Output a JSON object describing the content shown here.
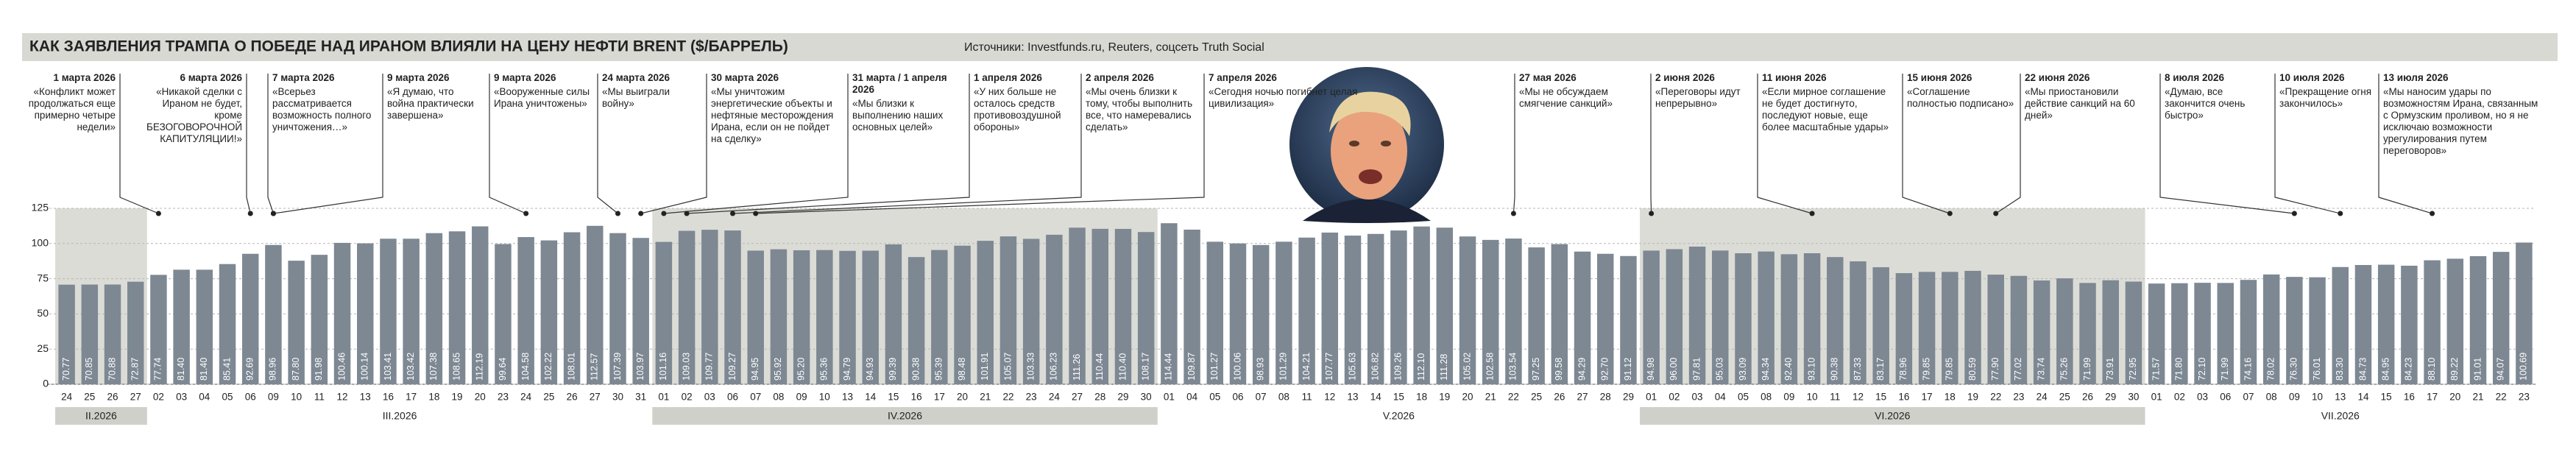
{
  "chart_data": {
    "type": "bar",
    "title": "КАК ЗАЯВЛЕНИЯ ТРАМПА О ПОБЕДЕ НАД ИРАНОМ ВЛИЯЛИ НА ЦЕНУ НЕФТИ BRENT ($/БАРРЕЛЬ)",
    "source": "Источники: Investfunds.ru, Reuters, соцсеть Truth Social",
    "color": "#7d8893",
    "ylim": [
      0,
      125
    ],
    "yticks": [
      0,
      25,
      50,
      75,
      100,
      125
    ],
    "grid": true,
    "months": [
      "II.2026",
      "III.2026",
      "IV.2026",
      "V.2026",
      "VI.2026",
      "VII.2026"
    ],
    "categories": [
      "24",
      "25",
      "26",
      "27",
      "02",
      "03",
      "04",
      "05",
      "06",
      "09",
      "10",
      "11",
      "12",
      "13",
      "16",
      "17",
      "18",
      "19",
      "20",
      "23",
      "24",
      "25",
      "26",
      "27",
      "30",
      "31",
      "01",
      "02",
      "03",
      "06",
      "07",
      "08",
      "09",
      "10",
      "13",
      "14",
      "15",
      "16",
      "17",
      "20",
      "21",
      "22",
      "23",
      "24",
      "27",
      "28",
      "29",
      "30",
      "01",
      "04",
      "05",
      "06",
      "07",
      "08",
      "11",
      "12",
      "13",
      "14",
      "15",
      "18",
      "19",
      "20",
      "21",
      "22",
      "25",
      "26",
      "27",
      "28",
      "29",
      "01",
      "02",
      "03",
      "04",
      "05",
      "08",
      "09",
      "10",
      "11",
      "12",
      "15",
      "16",
      "17",
      "18",
      "19",
      "22",
      "23",
      "24",
      "25",
      "26",
      "29",
      "30",
      "01",
      "02",
      "03",
      "06",
      "07",
      "08",
      "09",
      "10",
      "13",
      "14",
      "15",
      "16",
      "17",
      "20",
      "21",
      "22",
      "23"
    ],
    "values": [
      70.77,
      70.85,
      70.88,
      72.87,
      77.74,
      81.4,
      81.4,
      85.41,
      92.69,
      98.96,
      87.8,
      91.98,
      100.46,
      100.14,
      103.41,
      103.42,
      107.38,
      108.65,
      112.19,
      99.64,
      104.58,
      102.22,
      108.01,
      112.57,
      107.39,
      103.97,
      101.16,
      109.03,
      109.77,
      109.27,
      94.95,
      95.92,
      95.2,
      95.36,
      94.79,
      94.93,
      99.39,
      90.38,
      95.39,
      98.48,
      101.91,
      105.07,
      103.33,
      106.23,
      111.26,
      110.44,
      110.4,
      108.17,
      114.44,
      109.87,
      101.27,
      100.06,
      98.93,
      101.29,
      104.21,
      107.77,
      105.63,
      106.82,
      109.26,
      112.1,
      111.28,
      105.02,
      102.58,
      103.54,
      97.25,
      99.58,
      94.29,
      92.7,
      91.12,
      94.98,
      96.0,
      97.81,
      95.03,
      93.09,
      94.34,
      92.4,
      93.1,
      90.38,
      87.33,
      83.17,
      78.96,
      79.85,
      79.85,
      80.59,
      77.9,
      77.02,
      73.74,
      75.26,
      71.99,
      73.91,
      72.95,
      71.57,
      71.8,
      72.1,
      71.99,
      74.16,
      78.02,
      76.3,
      76.01,
      83.3,
      84.73,
      84.95,
      84.23,
      88.1,
      89.22,
      91.01,
      94.07,
      100.69
    ],
    "value_labels": [
      "70.77",
      "70.85",
      "70.88",
      "72.87",
      "77.74",
      "81.40",
      "81.40",
      "85.41",
      "92.69",
      "98.96",
      "87.80",
      "91.98",
      "100.46",
      "100.14",
      "103.41",
      "103.42",
      "107.38",
      "108.65",
      "112.19",
      "99.64",
      "104.58",
      "102.22",
      "108.01",
      "112.57",
      "107.39",
      "103.97",
      "101.16",
      "109.03",
      "109.77",
      "109.27",
      "94.95",
      "95.92",
      "95.20",
      "95.36",
      "94.79",
      "94.93",
      "99.39",
      "90.38",
      "95.39",
      "98.48",
      "101.91",
      "105.07",
      "103.33",
      "106.23",
      "111.26",
      "110.44",
      "110.40",
      "108.17",
      "114.44",
      "109.87",
      "101.27",
      "100.06",
      "98.93",
      "101.29",
      "104.21",
      "107.77",
      "105.63",
      "106.82",
      "109.26",
      "112.10",
      "111.28",
      "105.02",
      "102.58",
      "103.54",
      "97.25",
      "99.58",
      "94.29",
      "92.70",
      "91.12",
      "94.98",
      "96.00",
      "97.81",
      "95.03",
      "93.09",
      "94.34",
      "92.40",
      "93.10",
      "90.38",
      "87.33",
      "83.17",
      "78.96",
      "79.85",
      "79.85",
      "80.59",
      "77.90",
      "77.02",
      "73.74",
      "75.26",
      "71.99",
      "73.91",
      "72.95",
      "71.57",
      "71.80",
      "72.10",
      "71.99",
      "74.16",
      "78.02",
      "76.30",
      "76.01",
      "83.30",
      "84.73",
      "84.95",
      "84.23",
      "88.10",
      "89.22",
      "91.01",
      "94.07",
      "100.69"
    ],
    "annotations": [
      {
        "date": "1 марта 2026",
        "text": "«Конфликт может продолжаться еще примерно четыре недели»"
      },
      {
        "date": "6 марта 2026",
        "text": "«Никакой сделки с Ираном не будет, кроме БЕЗОГОВОРОЧНОЙ КАПИТУЛЯЦИИ!»"
      },
      {
        "date": "7 марта 2026",
        "text": "«Всерьез рассматривается возможность полного уничтожения…»"
      },
      {
        "date": "9 марта 2026",
        "text": "«Я думаю, что война практически завершена»"
      },
      {
        "date": "9 марта 2026",
        "text": "«Вооруженные силы Ирана уничтожены»"
      },
      {
        "date": "24 марта 2026",
        "text": "«Мы выиграли войну»"
      },
      {
        "date": "30 марта 2026",
        "text": "«Мы уничтожим энергетические объекты и нефтяные месторождения Ирана, если он не пойдет на сделку»"
      },
      {
        "date": "31 марта / 1 апреля 2026",
        "text": "«Мы близки к выполнению наших основных целей»"
      },
      {
        "date": "1 апреля 2026",
        "text": "«У них больше не осталось средств противовоздушной обороны»"
      },
      {
        "date": "2 апреля 2026",
        "text": "«Мы очень близки к тому, чтобы выполнить все, что намеревались сделать»"
      },
      {
        "date": "7 апреля 2026",
        "text": "«Сегодня ночью погибнет целая цивилизация»"
      },
      {
        "date": "27 мая 2026",
        "text": "«Мы не обсуждаем смягчение санкций»"
      },
      {
        "date": "2 июня 2026",
        "text": "«Переговоры идут непрерывно»"
      },
      {
        "date": "11 июня 2026",
        "text": "«Если мирное соглашение не будет достигнуто, последуют новые, еще более масштабные удары»"
      },
      {
        "date": "15 июня 2026",
        "text": "«Соглашение полностью подписано»"
      },
      {
        "date": "22 июня 2026",
        "text": "«Мы приостановили действие санкций на 60 дней»"
      },
      {
        "date": "8 июля 2026",
        "text": "«Думаю, все закончится очень быстро»"
      },
      {
        "date": "10 июля 2026",
        "text": "«Прекращение огня закончилось»"
      },
      {
        "date": "13 июля 2026",
        "text": "«Мы наносим удары по возможностям Ирана, связанным с Ормузским проливом, но я не исключаю возможности урегулирования путем переговоров»"
      }
    ]
  }
}
